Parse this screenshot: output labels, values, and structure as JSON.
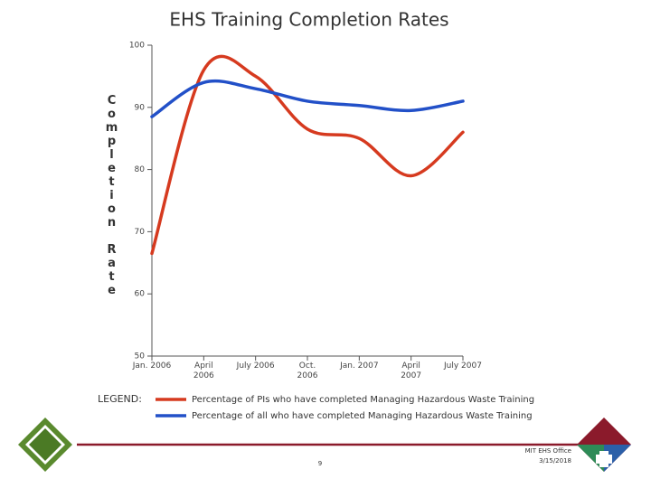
{
  "chart_data": {
    "type": "line",
    "title": "EHS Training Completion Rates",
    "y_label": "Completion Rate",
    "categories": [
      "Jan. 2006",
      "April 2006",
      "July 2006",
      "Oct. 2006",
      "Jan. 2007",
      "April 2007",
      "July 2007"
    ],
    "series": [
      {
        "name": "Percentage of PIs who have completed Managing Hazardous Waste Training",
        "color": "#d63a1f",
        "values": [
          66.5,
          96,
          95,
          86.5,
          85,
          79,
          86
        ]
      },
      {
        "name": "Percentage of all who have completed Managing Hazardous Waste Training",
        "color": "#2250c8",
        "values": [
          88.5,
          94,
          93,
          91,
          90.3,
          89.5,
          91
        ]
      }
    ],
    "ylim": [
      50,
      100
    ],
    "yticks": [
      50,
      60,
      70,
      80,
      90,
      100
    ],
    "legend_title": "LEGEND:",
    "footer": {
      "page": "9",
      "office": "MIT EHS Office",
      "date": "3/15/2018"
    }
  }
}
